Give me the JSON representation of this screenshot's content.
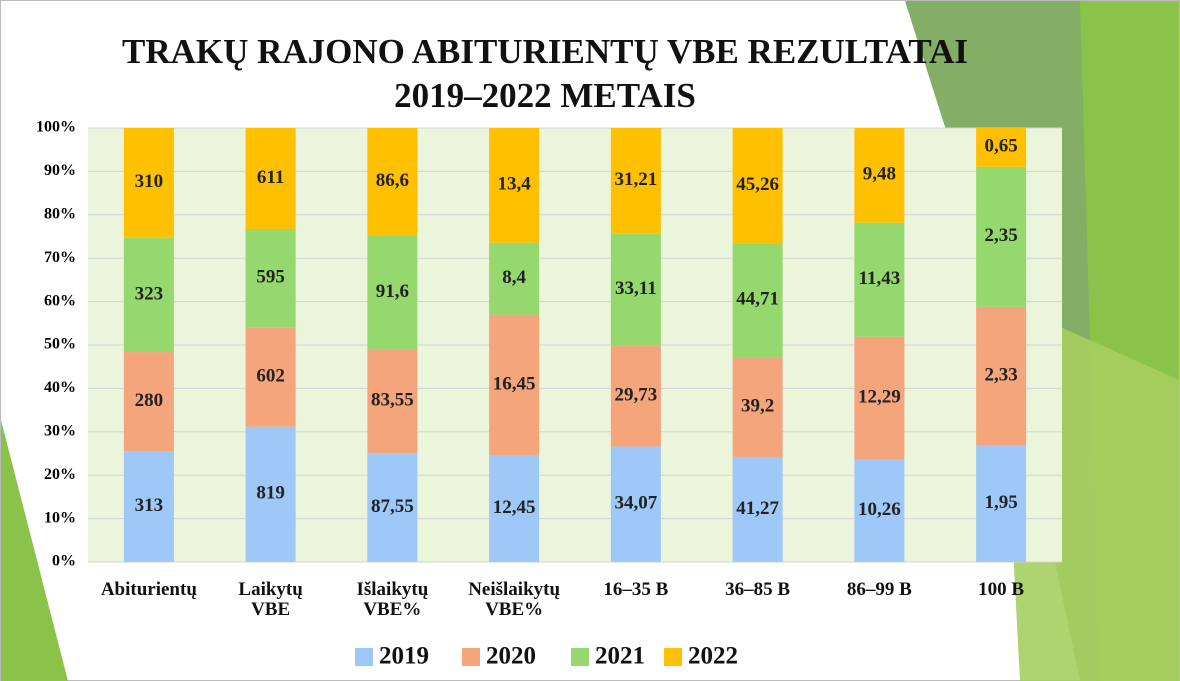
{
  "chart_data": {
    "type": "bar",
    "stacked": "percent",
    "title": "TRAKŲ RAJONO ABITURIENTŲ VBE REZULTATAI\n2019–2022 METAIS",
    "categories": [
      "Abiturientų",
      "Laikytų\nVBE",
      "Išlaikytų\nVBE%",
      "Neišlaikytų\nVBE%",
      "16–35 B",
      "36–85 B",
      "86–99 B",
      "100 B"
    ],
    "series": [
      {
        "name": "2019",
        "color": "#9dc8f7",
        "values": [
          313,
          819,
          87.55,
          12.45,
          34.07,
          41.27,
          10.26,
          1.95
        ],
        "value_labels": [
          "313",
          "819",
          "87,55",
          "12,45",
          "34,07",
          "41,27",
          "10,26",
          "1,95"
        ]
      },
      {
        "name": "2020",
        "color": "#f4a57c",
        "values": [
          280,
          602,
          83.55,
          16.45,
          29.73,
          39.2,
          12.29,
          2.33
        ],
        "value_labels": [
          "280",
          "602",
          "83,55",
          "16,45",
          "29,73",
          "39,2",
          "12,29",
          "2,33"
        ]
      },
      {
        "name": "2021",
        "color": "#95d86d",
        "values": [
          323,
          595,
          91.6,
          8.4,
          33.11,
          44.71,
          11.43,
          2.35
        ],
        "value_labels": [
          "323",
          "595",
          "91,6",
          "8,4",
          "33,11",
          "44,71",
          "11,43",
          "2,35"
        ]
      },
      {
        "name": "2022",
        "color": "#ffc000",
        "values": [
          310,
          611,
          86.6,
          13.4,
          31.21,
          45.26,
          9.48,
          0.65
        ],
        "value_labels": [
          "310",
          "611",
          "86,6",
          "13,4",
          "31,21",
          "45,26",
          "9,48",
          "0,65"
        ]
      }
    ],
    "ylim": [
      0,
      100
    ],
    "yticks": [
      {
        "value": 0,
        "label": "0%"
      },
      {
        "value": 10,
        "label": "10%"
      },
      {
        "value": 20,
        "label": "20%"
      },
      {
        "value": 30,
        "label": "30%"
      },
      {
        "value": 40,
        "label": "40%"
      },
      {
        "value": 50,
        "label": "50%"
      },
      {
        "value": 60,
        "label": "60%"
      },
      {
        "value": 70,
        "label": "70%"
      },
      {
        "value": 80,
        "label": "80%"
      },
      {
        "value": 90,
        "label": "90%"
      },
      {
        "value": 100,
        "label": "100%"
      }
    ],
    "grid": true,
    "legend": "bottom"
  }
}
